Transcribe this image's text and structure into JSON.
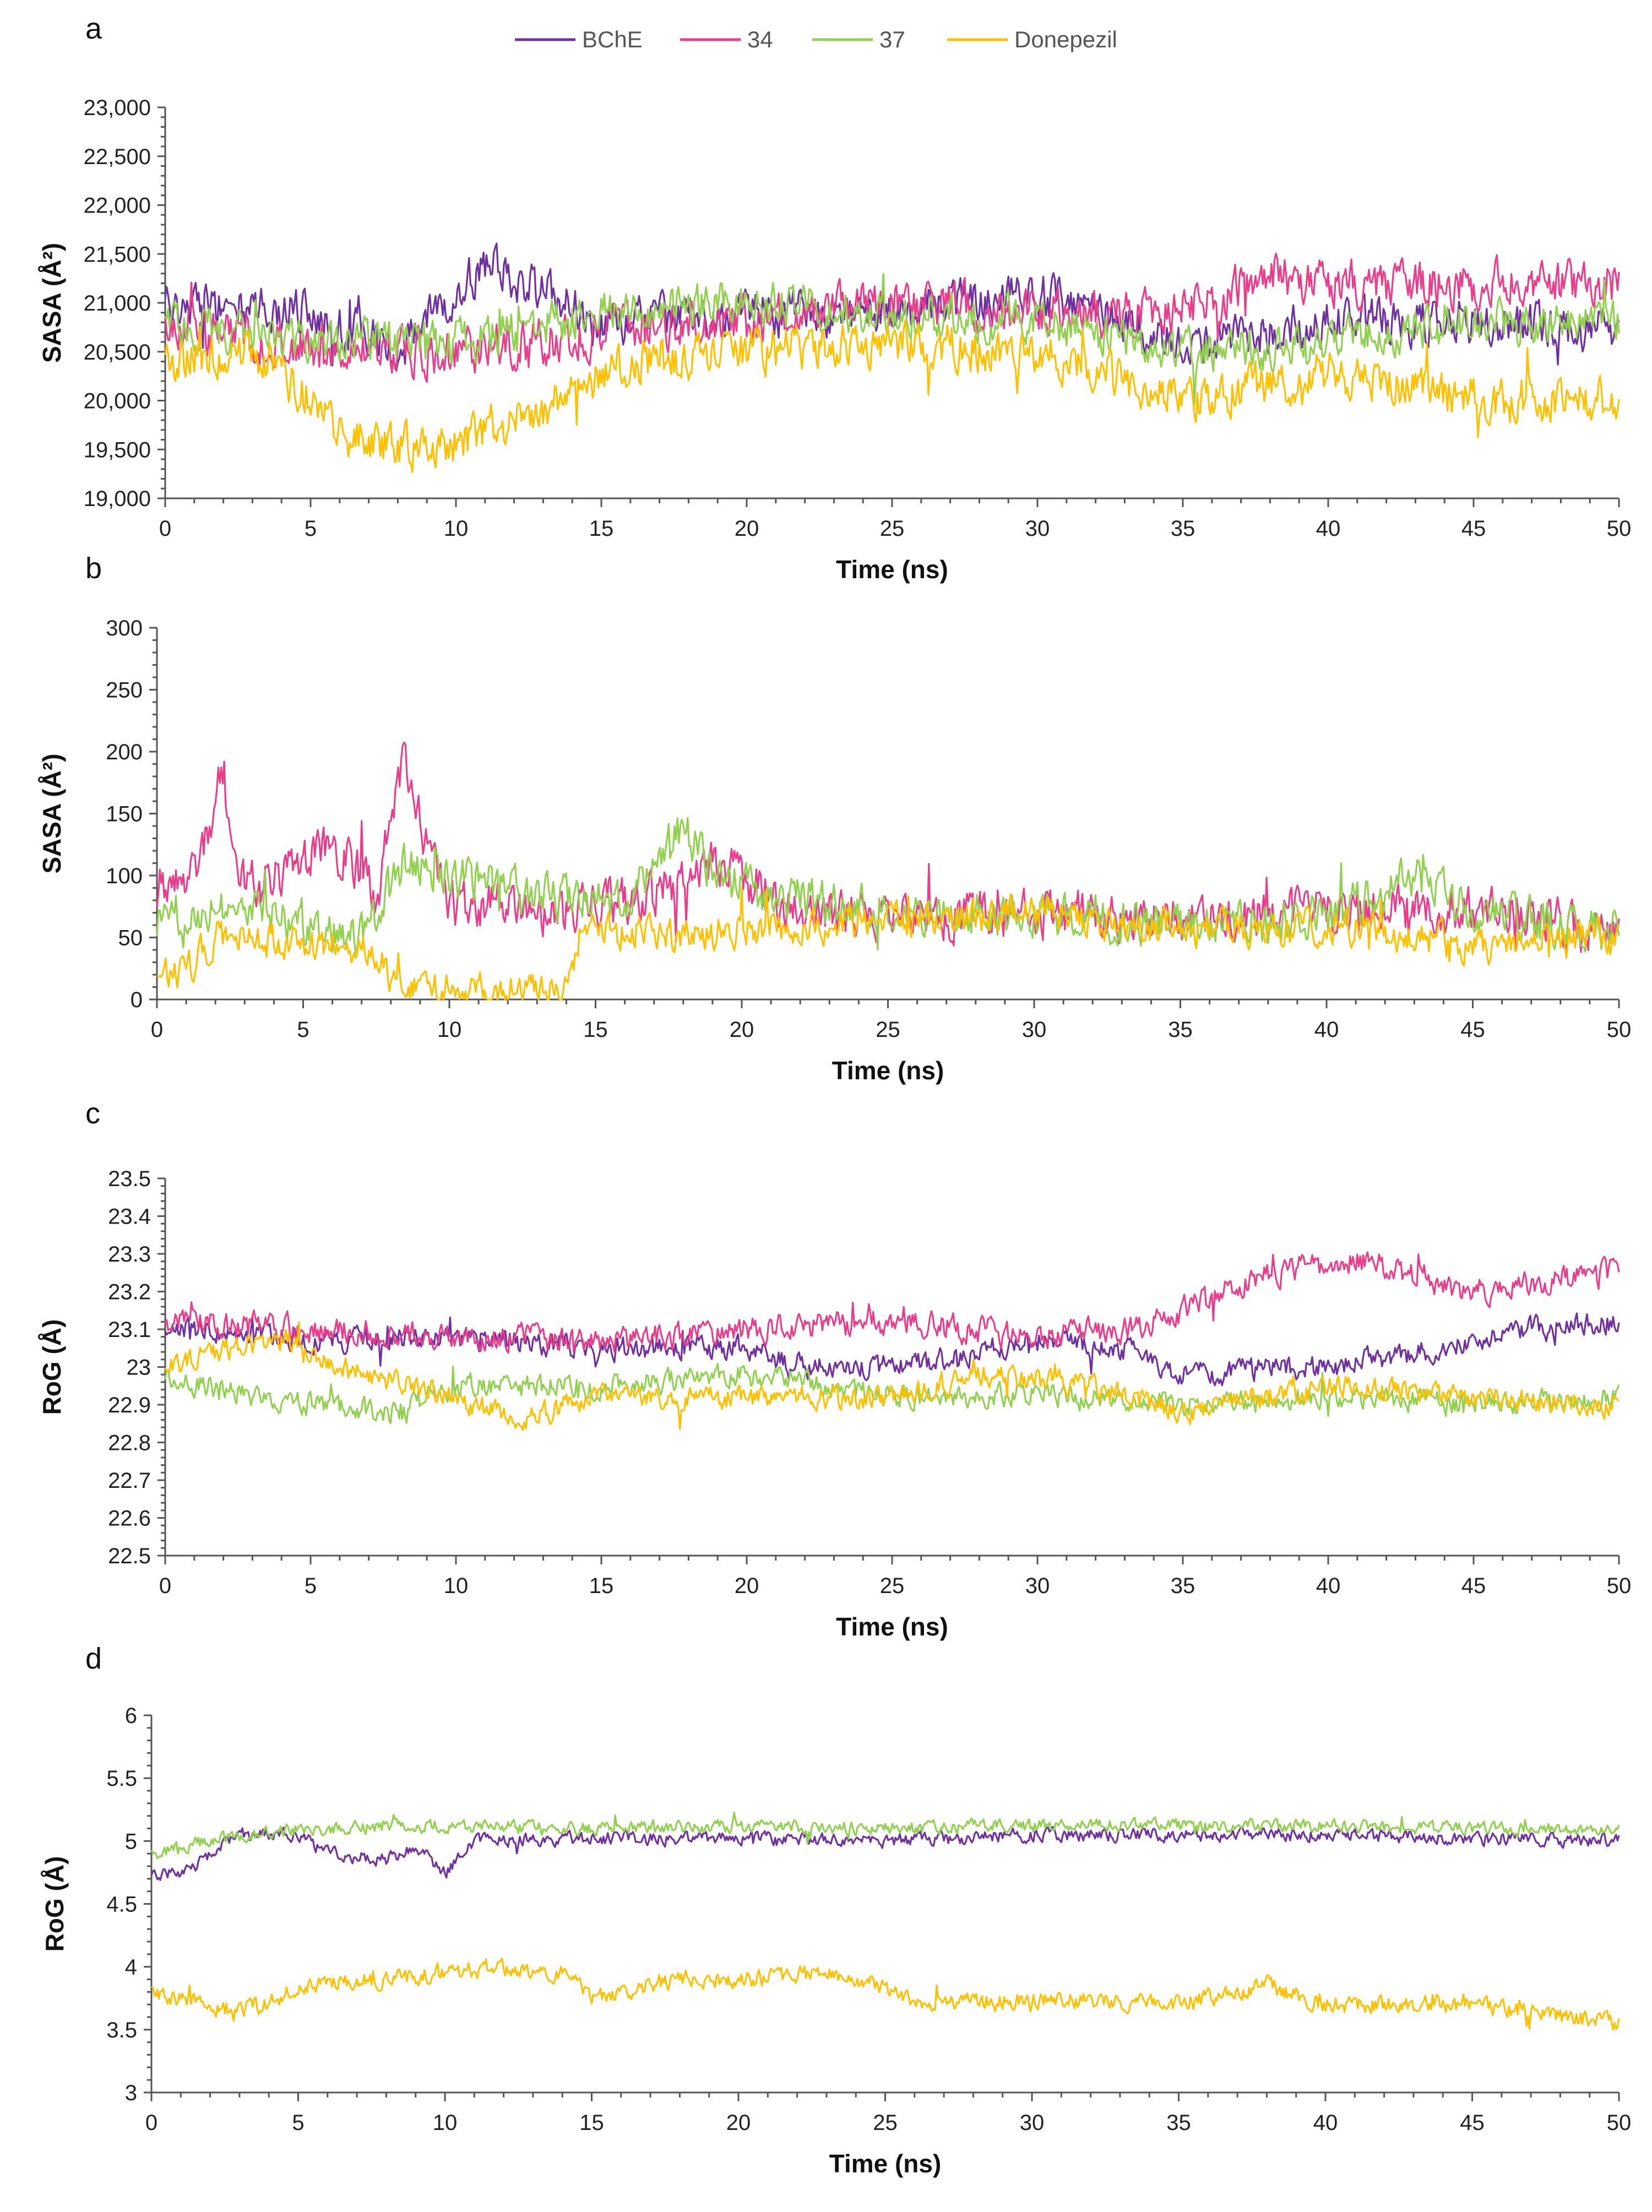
{
  "legend": {
    "items": [
      {
        "name": "BChE",
        "color": "#7030A0"
      },
      {
        "name": "34",
        "color": "#E83E8C"
      },
      {
        "name": "37",
        "color": "#92D050"
      },
      {
        "name": "Donepezil",
        "color": "#FFC000"
      }
    ]
  },
  "chart_data": [
    {
      "panel": "a",
      "type": "line",
      "ylabel": "SASA (Å²)",
      "xlabel": "Time (ns)",
      "xlim": [
        0,
        50
      ],
      "ylim": [
        19000,
        23000
      ],
      "xticks": [
        "0",
        "5",
        "10",
        "15",
        "20",
        "25",
        "30",
        "35",
        "40",
        "45",
        "50"
      ],
      "yticks": [
        "19,000",
        "19,500",
        "20,000",
        "20,500",
        "21,000",
        "21,500",
        "22,000",
        "22,500",
        "23,000"
      ],
      "series": [
        {
          "name": "BChE",
          "color": "#7030A0",
          "base": [
            [
              0,
              21000
            ],
            [
              5,
              20900
            ],
            [
              8,
              20500
            ],
            [
              11,
              21400
            ],
            [
              15,
              20800
            ],
            [
              20,
              20900
            ],
            [
              25,
              20900
            ],
            [
              30,
              21100
            ],
            [
              35,
              20600
            ],
            [
              40,
              20800
            ],
            [
              45,
              20800
            ],
            [
              50,
              20700
            ]
          ],
          "amp": 260,
          "min": 19750,
          "max": 22000
        },
        {
          "name": "34",
          "color": "#E83E8C",
          "base": [
            [
              0,
              20800
            ],
            [
              5,
              20500
            ],
            [
              10,
              20500
            ],
            [
              15,
              20700
            ],
            [
              20,
              20800
            ],
            [
              25,
              21000
            ],
            [
              30,
              20900
            ],
            [
              35,
              20900
            ],
            [
              38,
              21300
            ],
            [
              40,
              21200
            ],
            [
              45,
              21200
            ],
            [
              50,
              21200
            ]
          ],
          "amp": 270,
          "min": 19900,
          "max": 22300
        },
        {
          "name": "37",
          "color": "#92D050",
          "base": [
            [
              0,
              20800
            ],
            [
              5,
              20600
            ],
            [
              10,
              20600
            ],
            [
              15,
              20900
            ],
            [
              20,
              21000
            ],
            [
              25,
              20900
            ],
            [
              30,
              20800
            ],
            [
              35,
              20500
            ],
            [
              40,
              20600
            ],
            [
              45,
              20800
            ],
            [
              50,
              20800
            ]
          ],
          "amp": 250,
          "min": 19750,
          "max": 21800
        },
        {
          "name": "Donepezil",
          "color": "#FFC000",
          "base": [
            [
              0,
              20400
            ],
            [
              3,
              20500
            ],
            [
              6.5,
              19600
            ],
            [
              9,
              19500
            ],
            [
              13,
              19900
            ],
            [
              16,
              20400
            ],
            [
              20,
              20500
            ],
            [
              24,
              20600
            ],
            [
              30,
              20500
            ],
            [
              35,
              20000
            ],
            [
              40,
              20300
            ],
            [
              45,
              20000
            ],
            [
              50,
              20000
            ]
          ],
          "amp": 260,
          "min": 19000,
          "max": 21100
        }
      ]
    },
    {
      "panel": "b",
      "type": "line",
      "ylabel": "SASA (Å²)",
      "xlabel": "Time (ns)",
      "xlim": [
        0,
        50
      ],
      "ylim": [
        0,
        300
      ],
      "xticks": [
        "0",
        "5",
        "10",
        "15",
        "20",
        "25",
        "30",
        "35",
        "40",
        "45",
        "50"
      ],
      "yticks": [
        "0",
        "50",
        "100",
        "150",
        "200",
        "250",
        "300"
      ],
      "series": [
        {
          "name": "34",
          "color": "#E83E8C",
          "base": [
            [
              0,
              90
            ],
            [
              1.5,
              110
            ],
            [
              2.2,
              185
            ],
            [
              3,
              90
            ],
            [
              4,
              95
            ],
            [
              5,
              115
            ],
            [
              6.5,
              120
            ],
            [
              7.5,
              80
            ],
            [
              8.4,
              190
            ],
            [
              9.2,
              130
            ],
            [
              10,
              75
            ],
            [
              12,
              75
            ],
            [
              14,
              70
            ],
            [
              17,
              85
            ],
            [
              19,
              110
            ],
            [
              20,
              100
            ],
            [
              22,
              65
            ],
            [
              30,
              70
            ],
            [
              35,
              65
            ],
            [
              40,
              70
            ],
            [
              45,
              75
            ],
            [
              50,
              50
            ]
          ],
          "amp": 22,
          "min": 15,
          "max": 220
        },
        {
          "name": "37",
          "color": "#92D050",
          "base": [
            [
              0,
              65
            ],
            [
              3,
              80
            ],
            [
              5,
              55
            ],
            [
              7,
              50
            ],
            [
              8.5,
              110
            ],
            [
              10,
              100
            ],
            [
              13,
              85
            ],
            [
              16,
              80
            ],
            [
              18,
              140
            ],
            [
              19,
              100
            ],
            [
              21,
              85
            ],
            [
              25,
              70
            ],
            [
              30,
              70
            ],
            [
              35,
              60
            ],
            [
              40,
              65
            ],
            [
              43,
              100
            ],
            [
              45,
              70
            ],
            [
              50,
              55
            ]
          ],
          "amp": 20,
          "min": 15,
          "max": 165
        },
        {
          "name": "Donepezil",
          "color": "#FFC000",
          "base": [
            [
              0,
              30
            ],
            [
              1,
              20
            ],
            [
              2,
              50
            ],
            [
              5,
              45
            ],
            [
              7.5,
              40
            ],
            [
              8,
              8
            ],
            [
              11,
              8
            ],
            [
              14,
              10
            ],
            [
              14.5,
              55
            ],
            [
              20,
              55
            ],
            [
              25,
              65
            ],
            [
              30,
              70
            ],
            [
              35,
              55
            ],
            [
              40,
              60
            ],
            [
              45,
              45
            ],
            [
              50,
              50
            ]
          ],
          "amp": 16,
          "min": 0,
          "max": 125
        }
      ]
    },
    {
      "panel": "c",
      "type": "line",
      "ylabel": "RoG (Å)",
      "xlabel": "Time (ns)",
      "xlim": [
        0,
        50
      ],
      "ylim": [
        22.5,
        23.5
      ],
      "xticks": [
        "0",
        "5",
        "10",
        "15",
        "20",
        "25",
        "30",
        "35",
        "40",
        "45",
        "50"
      ],
      "yticks": [
        "22.5",
        "22.6",
        "22.7",
        "22.8",
        "22.9",
        "23",
        "23.1",
        "23.2",
        "23.3",
        "23.4",
        "23.5"
      ],
      "series": [
        {
          "name": "BChE",
          "color": "#7030A0",
          "base": [
            [
              0,
              23.1
            ],
            [
              5,
              23.07
            ],
            [
              10,
              23.08
            ],
            [
              15,
              23.05
            ],
            [
              20,
              23.05
            ],
            [
              22,
              23.0
            ],
            [
              25,
              23.0
            ],
            [
              30,
              23.07
            ],
            [
              33,
              23.05
            ],
            [
              35,
              22.98
            ],
            [
              40,
              23.0
            ],
            [
              44,
              23.05
            ],
            [
              47,
              23.1
            ],
            [
              50,
              23.12
            ]
          ],
          "amp": 0.035,
          "min": 22.85,
          "max": 23.2
        },
        {
          "name": "34",
          "color": "#E83E8C",
          "base": [
            [
              0,
              23.12
            ],
            [
              5,
              23.1
            ],
            [
              10,
              23.08
            ],
            [
              15,
              23.07
            ],
            [
              20,
              23.1
            ],
            [
              25,
              23.12
            ],
            [
              30,
              23.08
            ],
            [
              33,
              23.1
            ],
            [
              35,
              23.15
            ],
            [
              38,
              23.25
            ],
            [
              41,
              23.28
            ],
            [
              45,
              23.2
            ],
            [
              50,
              23.25
            ]
          ],
          "amp": 0.04,
          "min": 22.95,
          "max": 23.38
        },
        {
          "name": "37",
          "color": "#92D050",
          "base": [
            [
              0,
              22.97
            ],
            [
              5,
              22.9
            ],
            [
              8,
              22.88
            ],
            [
              10,
              22.95
            ],
            [
              15,
              22.95
            ],
            [
              20,
              22.98
            ],
            [
              25,
              22.92
            ],
            [
              30,
              22.93
            ],
            [
              35,
              22.9
            ],
            [
              40,
              22.92
            ],
            [
              45,
              22.9
            ],
            [
              50,
              22.92
            ]
          ],
          "amp": 0.035,
          "min": 22.79,
          "max": 23.05
        },
        {
          "name": "Donepezil",
          "color": "#FFC000",
          "base": [
            [
              0,
              23.0
            ],
            [
              4,
              23.08
            ],
            [
              6,
              23.0
            ],
            [
              10,
              22.92
            ],
            [
              12,
              22.86
            ],
            [
              15,
              22.92
            ],
            [
              20,
              22.92
            ],
            [
              25,
              22.92
            ],
            [
              28,
              22.98
            ],
            [
              32,
              22.95
            ],
            [
              35,
              22.88
            ],
            [
              40,
              22.95
            ],
            [
              45,
              22.92
            ],
            [
              50,
              22.9
            ]
          ],
          "amp": 0.035,
          "min": 22.78,
          "max": 23.15
        }
      ]
    },
    {
      "panel": "d",
      "type": "line",
      "ylabel": "RoG (Å)",
      "xlabel": "Time (ns)",
      "xlim": [
        0,
        50
      ],
      "ylim": [
        3,
        6
      ],
      "xticks": [
        "0",
        "5",
        "10",
        "15",
        "20",
        "25",
        "30",
        "35",
        "40",
        "45",
        "50"
      ],
      "yticks": [
        "3",
        "3.5",
        "4",
        "4.5",
        "5",
        "5.5",
        "6"
      ],
      "series": [
        {
          "name": "BChE",
          "color": "#7030A0",
          "base": [
            [
              0,
              4.7
            ],
            [
              1.5,
              4.8
            ],
            [
              3,
              5.05
            ],
            [
              5,
              5.05
            ],
            [
              6,
              4.9
            ],
            [
              8,
              4.85
            ],
            [
              9,
              4.95
            ],
            [
              10,
              4.75
            ],
            [
              11,
              5.0
            ],
            [
              15,
              5.02
            ],
            [
              20,
              5.02
            ],
            [
              25,
              5.0
            ],
            [
              30,
              5.05
            ],
            [
              35,
              5.05
            ],
            [
              40,
              5.05
            ],
            [
              45,
              5.02
            ],
            [
              50,
              5.0
            ]
          ],
          "amp": 0.06,
          "min": 4.5,
          "max": 5.25
        },
        {
          "name": "37",
          "color": "#92D050",
          "base": [
            [
              0,
              4.9
            ],
            [
              2,
              5.0
            ],
            [
              5,
              5.1
            ],
            [
              10,
              5.12
            ],
            [
              15,
              5.1
            ],
            [
              20,
              5.12
            ],
            [
              25,
              5.1
            ],
            [
              30,
              5.12
            ],
            [
              35,
              5.12
            ],
            [
              40,
              5.12
            ],
            [
              45,
              5.1
            ],
            [
              50,
              5.08
            ]
          ],
          "amp": 0.06,
          "min": 4.7,
          "max": 5.4
        },
        {
          "name": "Donepezil",
          "color": "#FFC000",
          "base": [
            [
              0,
              3.8
            ],
            [
              1,
              3.75
            ],
            [
              2,
              3.65
            ],
            [
              4,
              3.7
            ],
            [
              5,
              3.85
            ],
            [
              8,
              3.9
            ],
            [
              10,
              3.95
            ],
            [
              12,
              4.0
            ],
            [
              14,
              3.95
            ],
            [
              15,
              3.75
            ],
            [
              18,
              3.9
            ],
            [
              20,
              3.9
            ],
            [
              23,
              3.95
            ],
            [
              25,
              3.85
            ],
            [
              26,
              3.7
            ],
            [
              30,
              3.75
            ],
            [
              35,
              3.7
            ],
            [
              38,
              3.85
            ],
            [
              40,
              3.7
            ],
            [
              45,
              3.7
            ],
            [
              48,
              3.6
            ],
            [
              50,
              3.55
            ]
          ],
          "amp": 0.08,
          "min": 3.4,
          "max": 4.25
        }
      ]
    }
  ]
}
